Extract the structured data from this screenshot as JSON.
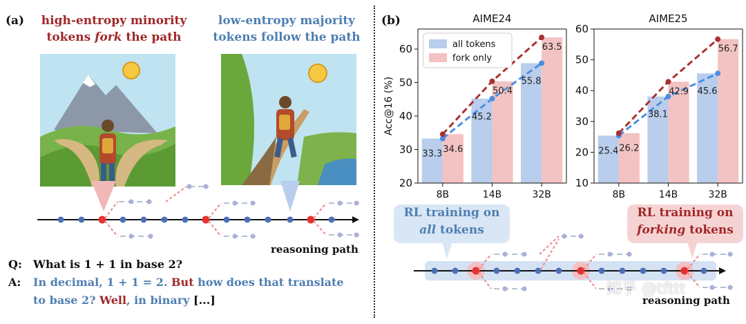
{
  "panel_a": {
    "label": "(a)",
    "fork_caption": {
      "line1": "high-entropy minority",
      "line2_pre": "tokens ",
      "line2_em": "fork",
      "line2_post": " the path"
    },
    "follow_caption": {
      "line1": "low-entropy majority",
      "line2": "tokens follow the path"
    },
    "path_label": "reasoning path",
    "q_label": "Q:",
    "question": "What is 1 + 1 in base 2?",
    "a_label": "A:",
    "answer": {
      "seg1": "In decimal, 1 + 1 = 2. ",
      "seg2": "But",
      "seg3": " how does that translate",
      "seg4": "to base 2? ",
      "seg5": "Well",
      "seg6": ", in binary ",
      "seg7": "[...]"
    }
  },
  "panel_b": {
    "label": "(b)",
    "rl_all": {
      "line1": "RL training on",
      "line2": "all",
      "line3": " tokens"
    },
    "rl_fork": {
      "line1": "RL training on",
      "line2": "forking",
      "line3": " tokens"
    },
    "path_label": "reasoning path"
  },
  "watermark": "知乎 @tfttt",
  "colors": {
    "red": "#a02828",
    "blue": "#4f7fb2",
    "bar_blue": "#b9cdec",
    "bar_pink": "#f3c3c3",
    "line_red": "#a83232",
    "line_blue": "#4a8ee2"
  },
  "chart_data": [
    {
      "type": "bar",
      "title": "AIME24",
      "categories": [
        "8B",
        "14B",
        "32B"
      ],
      "series": [
        {
          "name": "all tokens",
          "values": [
            33.3,
            45.2,
            55.8
          ]
        },
        {
          "name": "fork only",
          "values": [
            34.6,
            50.4,
            63.5
          ]
        }
      ],
      "ylabel": "Acc@16 (%)",
      "ylim": [
        20,
        66
      ],
      "yticks": [
        20,
        30,
        40,
        50,
        60
      ],
      "legend": "top-left"
    },
    {
      "type": "bar",
      "title": "AIME25",
      "categories": [
        "8B",
        "14B",
        "32B"
      ],
      "series": [
        {
          "name": "all tokens",
          "values": [
            25.4,
            38.1,
            45.6
          ]
        },
        {
          "name": "fork only",
          "values": [
            26.2,
            42.9,
            56.7
          ]
        }
      ],
      "ylabel": "",
      "ylim": [
        10,
        60
      ],
      "yticks": [
        10,
        20,
        30,
        40,
        50,
        60
      ]
    }
  ]
}
